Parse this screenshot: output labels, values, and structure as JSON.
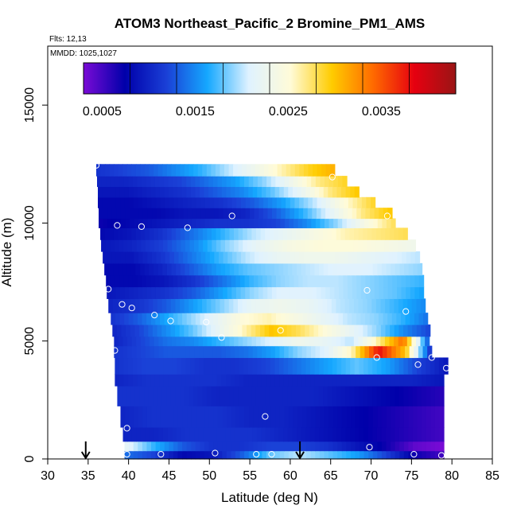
{
  "chart_data": {
    "type": "heatmap",
    "title": "ATOM3 Northeast_Pacific_2 Bromine_PM1_AMS",
    "flights_label": "Flts: 12,13",
    "dates_label": "MMDD: 1025,1027",
    "xlabel": "Latitude (deg N)",
    "ylabel": "Altitude (m)",
    "xlim": [
      30,
      85
    ],
    "ylim": [
      0,
      17500
    ],
    "x_ticks": [
      "30",
      "35",
      "40",
      "45",
      "50",
      "55",
      "60",
      "65",
      "70",
      "75",
      "80",
      "85"
    ],
    "y_ticks": [
      "0",
      "5000",
      "10000",
      "15000"
    ],
    "colorbar": {
      "range": [
        0.0003,
        0.0043
      ],
      "tick_labels": [
        "0.0005",
        "0.0015",
        "0.0025",
        "0.0035"
      ],
      "tick_values": [
        0.0005,
        0.0015,
        0.0025,
        0.0035
      ],
      "colors": [
        "#7a0bd6",
        "#0000aa",
        "#1a3fd6",
        "#15a8ff",
        "#dff2ff",
        "#fffbd8",
        "#ffcc00",
        "#ff6a00",
        "#e60010",
        "#9a1515"
      ]
    },
    "bands": [
      {
        "alt_low": 0,
        "alt_high": 350,
        "lat_start": 39.5,
        "lat_end": 79,
        "values": [
          0.0014,
          0.0012,
          0.0008,
          0.0009,
          0.0013,
          0.0018,
          0.002,
          0.0018,
          0.0016,
          0.0012,
          0.0007,
          0.0005
        ]
      },
      {
        "alt_low": 350,
        "alt_high": 750,
        "lat_start": 39.5,
        "lat_end": 79,
        "values": [
          0.0022,
          0.0017,
          0.0013,
          0.0011,
          0.0011,
          0.0012,
          0.0012,
          0.0011,
          0.0009,
          0.0007,
          0.0004,
          0.0003
        ]
      },
      {
        "alt_low": 750,
        "alt_high": 1350,
        "lat_start": 39.3,
        "lat_end": 79,
        "values": [
          0.001,
          0.001,
          0.0011,
          0.0011,
          0.0011,
          0.001,
          0.0009,
          0.0008,
          0.0007,
          0.0006,
          0.0005
        ]
      },
      {
        "alt_low": 1350,
        "alt_high": 2250,
        "lat_start": 39,
        "lat_end": 79,
        "values": [
          0.001,
          0.0011,
          0.0011,
          0.0011,
          0.001,
          0.001,
          0.0009,
          0.0008,
          0.0007,
          0.0006,
          0.0005
        ]
      },
      {
        "alt_low": 2250,
        "alt_high": 3100,
        "lat_start": 38.6,
        "lat_end": 79,
        "values": [
          0.0011,
          0.0011,
          0.0011,
          0.001,
          0.001,
          0.001,
          0.001,
          0.0009,
          0.0008,
          0.0007,
          0.0006
        ]
      },
      {
        "alt_low": 3100,
        "alt_high": 3600,
        "lat_start": 38.3,
        "lat_end": 79,
        "values": [
          0.001,
          0.0011,
          0.0011,
          0.0011,
          0.001,
          0.001,
          0.001,
          0.001,
          0.001,
          0.001,
          0.0009
        ]
      },
      {
        "alt_low": 3600,
        "alt_high": 4300,
        "lat_start": 38.3,
        "lat_end": 79.5,
        "values": [
          0.0011,
          0.0012,
          0.0012,
          0.0011,
          0.0011,
          0.0012,
          0.0014,
          0.0016,
          0.0018,
          0.0016,
          0.0012,
          0.0009
        ]
      },
      {
        "alt_low": 4300,
        "alt_high": 4800,
        "lat_start": 38.2,
        "lat_end": 77.5,
        "values": [
          0.0011,
          0.0012,
          0.0013,
          0.0013,
          0.0013,
          0.0014,
          0.0016,
          0.0019,
          0.0021,
          0.0026,
          0.0038,
          0.003,
          0.001
        ]
      },
      {
        "alt_low": 4800,
        "alt_high": 5200,
        "lat_start": 38.2,
        "lat_end": 77.2,
        "values": [
          0.001,
          0.0012,
          0.0014,
          0.0015,
          0.0017,
          0.0019,
          0.0021,
          0.0023,
          0.0022,
          0.002,
          0.0026,
          0.0034,
          0.0012
        ]
      },
      {
        "alt_low": 5200,
        "alt_high": 5700,
        "lat_start": 38,
        "lat_end": 77.3,
        "values": [
          0.001,
          0.0012,
          0.0015,
          0.0018,
          0.0022,
          0.0026,
          0.003,
          0.0028,
          0.0025,
          0.0022,
          0.0019,
          0.0015,
          0.0012
        ]
      },
      {
        "alt_low": 5700,
        "alt_high": 6200,
        "lat_start": 37.8,
        "lat_end": 77,
        "values": [
          0.0011,
          0.0013,
          0.0016,
          0.0019,
          0.0022,
          0.0025,
          0.0026,
          0.0024,
          0.0022,
          0.002,
          0.0019,
          0.0017,
          0.0014
        ]
      },
      {
        "alt_low": 6200,
        "alt_high": 6800,
        "lat_start": 37.5,
        "lat_end": 76.7,
        "values": [
          0.001,
          0.0011,
          0.0013,
          0.0016,
          0.0019,
          0.0022,
          0.0023,
          0.0022,
          0.002,
          0.0019,
          0.0017,
          0.0015
        ]
      },
      {
        "alt_low": 6800,
        "alt_high": 7300,
        "lat_start": 37.3,
        "lat_end": 76.5,
        "values": [
          0.0009,
          0.001,
          0.0011,
          0.0013,
          0.0016,
          0.0019,
          0.0021,
          0.0021,
          0.002,
          0.0019,
          0.0018,
          0.0016
        ]
      },
      {
        "alt_low": 7300,
        "alt_high": 7800,
        "lat_start": 37.2,
        "lat_end": 76.5,
        "values": [
          0.0008,
          0.0008,
          0.0009,
          0.0011,
          0.0014,
          0.0017,
          0.0019,
          0.002,
          0.002,
          0.0019,
          0.0018,
          0.0017
        ]
      },
      {
        "alt_low": 7800,
        "alt_high": 8300,
        "lat_start": 37,
        "lat_end": 76.3,
        "values": [
          0.0008,
          0.0008,
          0.001,
          0.0013,
          0.0016,
          0.0018,
          0.0019,
          0.002,
          0.0021,
          0.0021,
          0.002,
          0.0019
        ]
      },
      {
        "alt_low": 8300,
        "alt_high": 8800,
        "lat_start": 36.8,
        "lat_end": 76,
        "values": [
          0.0009,
          0.0009,
          0.0011,
          0.0014,
          0.0017,
          0.002,
          0.0022,
          0.0023,
          0.0023,
          0.0022,
          0.0021,
          0.002
        ]
      },
      {
        "alt_low": 8800,
        "alt_high": 9300,
        "lat_start": 36.6,
        "lat_end": 75.5,
        "values": [
          0.0009,
          0.001,
          0.0012,
          0.0015,
          0.0019,
          0.0022,
          0.0024,
          0.0025,
          0.0025,
          0.0024,
          0.0023
        ]
      },
      {
        "alt_low": 9300,
        "alt_high": 9800,
        "lat_start": 36.5,
        "lat_end": 74.5,
        "values": [
          0.0008,
          0.0009,
          0.0011,
          0.0014,
          0.0017,
          0.002,
          0.0022,
          0.0024,
          0.0026,
          0.0027,
          0.0028
        ]
      },
      {
        "alt_low": 9800,
        "alt_high": 10200,
        "lat_start": 36.3,
        "lat_end": 73,
        "values": [
          0.0007,
          0.0008,
          0.0009,
          0.001,
          0.0011,
          0.0011,
          0.0012,
          0.0015,
          0.0019,
          0.0024,
          0.0028
        ]
      },
      {
        "alt_low": 10200,
        "alt_high": 10650,
        "lat_start": 36.3,
        "lat_end": 72.6,
        "values": [
          0.0008,
          0.0008,
          0.0008,
          0.0009,
          0.0009,
          0.001,
          0.0013,
          0.0017,
          0.0022,
          0.0027,
          0.003
        ]
      },
      {
        "alt_low": 10650,
        "alt_high": 11100,
        "lat_start": 36.2,
        "lat_end": 70.5,
        "values": [
          0.0008,
          0.0008,
          0.0009,
          0.001,
          0.0011,
          0.0013,
          0.0016,
          0.002,
          0.0025,
          0.0029
        ]
      },
      {
        "alt_low": 11100,
        "alt_high": 11550,
        "lat_start": 36.2,
        "lat_end": 68.5,
        "values": [
          0.0009,
          0.0009,
          0.001,
          0.0011,
          0.0013,
          0.0015,
          0.0018,
          0.0022,
          0.0027,
          0.003
        ]
      },
      {
        "alt_low": 11550,
        "alt_high": 12000,
        "lat_start": 36.1,
        "lat_end": 67,
        "values": [
          0.001,
          0.001,
          0.0011,
          0.0012,
          0.0014,
          0.0016,
          0.0019,
          0.0023,
          0.0027,
          0.0029
        ]
      },
      {
        "alt_low": 12000,
        "alt_high": 12500,
        "lat_start": 36,
        "lat_end": 65.5,
        "values": [
          0.0011,
          0.0012,
          0.0013,
          0.0015,
          0.0017,
          0.002,
          0.0023,
          0.0026,
          0.0029,
          0.0031
        ]
      }
    ],
    "sample_points": [
      {
        "lat": 36.0,
        "alt": 12450
      },
      {
        "lat": 65.2,
        "alt": 11950
      },
      {
        "lat": 52.8,
        "alt": 10300
      },
      {
        "lat": 72.0,
        "alt": 10300
      },
      {
        "lat": 38.6,
        "alt": 9900
      },
      {
        "lat": 41.6,
        "alt": 9850
      },
      {
        "lat": 47.3,
        "alt": 9800
      },
      {
        "lat": 77.2,
        "alt": 7400
      },
      {
        "lat": 37.5,
        "alt": 7200
      },
      {
        "lat": 69.5,
        "alt": 7150
      },
      {
        "lat": 39.2,
        "alt": 6550
      },
      {
        "lat": 40.4,
        "alt": 6400
      },
      {
        "lat": 74.3,
        "alt": 6250
      },
      {
        "lat": 43.2,
        "alt": 6100
      },
      {
        "lat": 45.2,
        "alt": 5850
      },
      {
        "lat": 49.6,
        "alt": 5800
      },
      {
        "lat": 58.8,
        "alt": 5450
      },
      {
        "lat": 51.5,
        "alt": 5150
      },
      {
        "lat": 38.3,
        "alt": 4600
      },
      {
        "lat": 70.7,
        "alt": 4300
      },
      {
        "lat": 77.5,
        "alt": 4300
      },
      {
        "lat": 75.8,
        "alt": 4000
      },
      {
        "lat": 79.3,
        "alt": 3850
      },
      {
        "lat": 56.9,
        "alt": 1800
      },
      {
        "lat": 39.8,
        "alt": 1300
      },
      {
        "lat": 69.8,
        "alt": 500
      },
      {
        "lat": 39.8,
        "alt": 200
      },
      {
        "lat": 44.0,
        "alt": 200
      },
      {
        "lat": 50.7,
        "alt": 250
      },
      {
        "lat": 55.8,
        "alt": 200
      },
      {
        "lat": 57.7,
        "alt": 200
      },
      {
        "lat": 75.3,
        "alt": 200
      },
      {
        "lat": 78.7,
        "alt": 150
      }
    ],
    "arrows": [
      {
        "lat": 34.7
      },
      {
        "lat": 61.2
      }
    ]
  }
}
